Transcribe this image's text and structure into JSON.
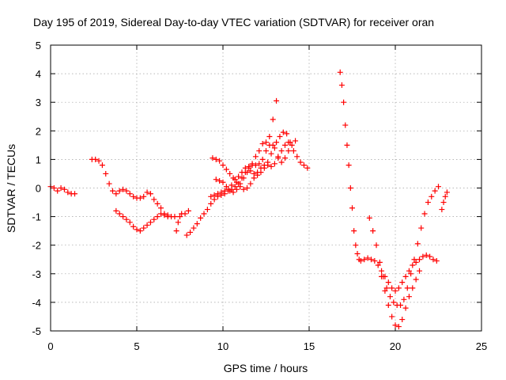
{
  "chart_data": {
    "type": "scatter",
    "title": "Day 195 of 2019, Sidereal Day-to-day VTEC variation (SDTVAR) for receiver oran",
    "xlabel": "GPS time / hours",
    "ylabel": "SDTVAR / TECUs",
    "xlim": [
      0,
      25
    ],
    "ylim": [
      -5,
      5
    ],
    "xticks": [
      "0",
      "5",
      "10",
      "15",
      "20",
      "25"
    ],
    "yticks": [
      "-5",
      "-4",
      "-3",
      "-2",
      "-1",
      "0",
      "1",
      "2",
      "3",
      "4",
      "5"
    ],
    "grid": true,
    "marker": "+",
    "color": "#ff0000",
    "series": [
      {
        "values": [
          [
            0.0,
            0.05
          ],
          [
            0.2,
            0.0
          ],
          [
            0.4,
            -0.1
          ],
          [
            0.6,
            0.0
          ],
          [
            0.8,
            -0.05
          ],
          [
            1.0,
            -0.15
          ],
          [
            1.2,
            -0.2
          ],
          [
            1.4,
            -0.2
          ],
          [
            2.4,
            1.0
          ],
          [
            2.6,
            1.0
          ],
          [
            2.8,
            0.95
          ],
          [
            3.0,
            0.8
          ],
          [
            3.2,
            0.5
          ],
          [
            3.4,
            0.15
          ],
          [
            3.6,
            -0.1
          ],
          [
            3.8,
            -0.2
          ],
          [
            4.0,
            -0.1
          ],
          [
            4.2,
            -0.05
          ],
          [
            4.4,
            -0.1
          ],
          [
            4.6,
            -0.2
          ],
          [
            4.8,
            -0.3
          ],
          [
            5.0,
            -0.35
          ],
          [
            5.2,
            -0.35
          ],
          [
            5.4,
            -0.3
          ],
          [
            5.6,
            -0.15
          ],
          [
            5.8,
            -0.2
          ],
          [
            6.0,
            -0.4
          ],
          [
            6.2,
            -0.55
          ],
          [
            6.4,
            -0.7
          ],
          [
            6.6,
            -0.9
          ],
          [
            6.8,
            -0.95
          ],
          [
            7.0,
            -1.0
          ],
          [
            7.2,
            -1.0
          ],
          [
            7.3,
            -1.5
          ],
          [
            7.4,
            -1.2
          ],
          [
            7.5,
            -1.0
          ],
          [
            7.6,
            -0.9
          ],
          [
            7.8,
            -0.9
          ],
          [
            8.0,
            -0.8
          ],
          [
            3.8,
            -0.8
          ],
          [
            4.0,
            -0.9
          ],
          [
            4.2,
            -1.0
          ],
          [
            4.4,
            -1.1
          ],
          [
            4.6,
            -1.2
          ],
          [
            4.8,
            -1.35
          ],
          [
            5.0,
            -1.45
          ],
          [
            5.2,
            -1.5
          ],
          [
            5.4,
            -1.4
          ],
          [
            5.6,
            -1.3
          ],
          [
            5.8,
            -1.2
          ],
          [
            6.0,
            -1.1
          ],
          [
            6.2,
            -1.0
          ],
          [
            6.4,
            -0.9
          ],
          [
            6.6,
            -0.95
          ],
          [
            6.8,
            -1.0
          ],
          [
            7.9,
            -1.65
          ],
          [
            8.1,
            -1.55
          ],
          [
            8.3,
            -1.4
          ],
          [
            8.5,
            -1.25
          ],
          [
            8.7,
            -1.05
          ],
          [
            8.9,
            -0.9
          ],
          [
            9.1,
            -0.75
          ],
          [
            9.3,
            -0.55
          ],
          [
            9.5,
            -0.4
          ],
          [
            9.7,
            -0.3
          ],
          [
            9.9,
            -0.25
          ],
          [
            10.1,
            -0.2
          ],
          [
            10.3,
            -0.1
          ],
          [
            10.5,
            -0.05
          ],
          [
            10.7,
            0.05
          ],
          [
            10.9,
            0.15
          ],
          [
            11.1,
            0.35
          ],
          [
            11.3,
            0.55
          ],
          [
            11.5,
            0.75
          ],
          [
            11.7,
            0.8
          ],
          [
            11.9,
            0.8
          ],
          [
            12.1,
            0.85
          ],
          [
            12.3,
            1.0
          ],
          [
            12.5,
            1.3
          ],
          [
            12.7,
            1.8
          ],
          [
            12.9,
            2.4
          ],
          [
            13.1,
            3.05
          ],
          [
            9.3,
            -0.3
          ],
          [
            9.5,
            -0.25
          ],
          [
            9.7,
            -0.2
          ],
          [
            9.9,
            -0.15
          ],
          [
            10.1,
            -0.1
          ],
          [
            10.3,
            -0.05
          ],
          [
            10.5,
            0.1
          ],
          [
            10.7,
            0.3
          ],
          [
            10.9,
            0.4
          ],
          [
            11.1,
            0.55
          ],
          [
            11.3,
            0.7
          ],
          [
            11.5,
            0.7
          ],
          [
            11.7,
            0.85
          ],
          [
            11.9,
            1.1
          ],
          [
            12.1,
            1.3
          ],
          [
            12.3,
            1.55
          ],
          [
            12.5,
            1.6
          ],
          [
            12.7,
            1.5
          ],
          [
            12.9,
            1.5
          ],
          [
            13.1,
            1.6
          ],
          [
            13.3,
            1.8
          ],
          [
            13.5,
            1.95
          ],
          [
            13.7,
            1.9
          ],
          [
            13.9,
            1.6
          ],
          [
            14.1,
            1.3
          ],
          [
            14.3,
            1.1
          ],
          [
            14.5,
            0.9
          ],
          [
            14.7,
            0.8
          ],
          [
            14.9,
            0.7
          ],
          [
            9.4,
            1.05
          ],
          [
            9.6,
            1.0
          ],
          [
            9.8,
            0.95
          ],
          [
            10.0,
            0.8
          ],
          [
            10.2,
            0.65
          ],
          [
            10.4,
            0.5
          ],
          [
            10.6,
            0.35
          ],
          [
            10.8,
            0.2
          ],
          [
            11.0,
            0.05
          ],
          [
            11.2,
            -0.05
          ],
          [
            11.4,
            0.0
          ],
          [
            11.6,
            0.15
          ],
          [
            11.8,
            0.35
          ],
          [
            12.0,
            0.55
          ],
          [
            12.2,
            0.7
          ],
          [
            12.4,
            0.8
          ],
          [
            12.6,
            0.9
          ],
          [
            12.8,
            1.2
          ],
          [
            13.0,
            1.4
          ],
          [
            13.2,
            1.1
          ],
          [
            13.4,
            0.9
          ],
          [
            13.6,
            1.05
          ],
          [
            13.8,
            1.3
          ],
          [
            14.0,
            1.5
          ],
          [
            14.2,
            1.65
          ],
          [
            9.6,
            0.3
          ],
          [
            9.8,
            0.25
          ],
          [
            10.0,
            0.2
          ],
          [
            10.2,
            0.05
          ],
          [
            10.4,
            -0.1
          ],
          [
            10.6,
            -0.15
          ],
          [
            10.8,
            -0.05
          ],
          [
            11.0,
            0.15
          ],
          [
            11.2,
            0.35
          ],
          [
            11.4,
            0.55
          ],
          [
            11.6,
            0.6
          ],
          [
            11.8,
            0.5
          ],
          [
            12.0,
            0.45
          ],
          [
            12.2,
            0.55
          ],
          [
            12.4,
            0.7
          ],
          [
            12.6,
            0.8
          ],
          [
            12.8,
            0.75
          ],
          [
            13.0,
            0.85
          ],
          [
            13.2,
            1.05
          ],
          [
            13.4,
            1.3
          ],
          [
            13.6,
            1.5
          ],
          [
            13.8,
            1.6
          ],
          [
            16.8,
            4.05
          ],
          [
            16.9,
            3.6
          ],
          [
            17.0,
            3.0
          ],
          [
            17.1,
            2.2
          ],
          [
            17.2,
            1.5
          ],
          [
            17.3,
            0.8
          ],
          [
            17.4,
            0.0
          ],
          [
            17.5,
            -0.7
          ],
          [
            17.6,
            -1.5
          ],
          [
            17.7,
            -2.0
          ],
          [
            17.8,
            -2.3
          ],
          [
            17.9,
            -2.5
          ],
          [
            18.0,
            -2.55
          ],
          [
            18.2,
            -2.5
          ],
          [
            18.4,
            -2.45
          ],
          [
            18.6,
            -2.5
          ],
          [
            18.8,
            -2.55
          ],
          [
            19.0,
            -2.7
          ],
          [
            19.2,
            -2.9
          ],
          [
            19.4,
            -3.1
          ],
          [
            19.6,
            -3.3
          ],
          [
            19.8,
            -3.5
          ],
          [
            20.0,
            -3.6
          ],
          [
            20.2,
            -3.5
          ],
          [
            20.4,
            -3.3
          ],
          [
            20.6,
            -3.1
          ],
          [
            20.8,
            -2.9
          ],
          [
            21.0,
            -2.7
          ],
          [
            21.2,
            -2.6
          ],
          [
            21.4,
            -2.5
          ],
          [
            21.6,
            -2.4
          ],
          [
            21.8,
            -2.35
          ],
          [
            22.0,
            -2.4
          ],
          [
            22.2,
            -2.5
          ],
          [
            22.4,
            -2.55
          ],
          [
            18.5,
            -1.05
          ],
          [
            18.7,
            -1.5
          ],
          [
            18.9,
            -2.0
          ],
          [
            19.1,
            -2.6
          ],
          [
            19.3,
            -3.1
          ],
          [
            19.5,
            -3.5
          ],
          [
            19.7,
            -3.8
          ],
          [
            19.9,
            -4.0
          ],
          [
            20.1,
            -4.1
          ],
          [
            20.3,
            -4.1
          ],
          [
            20.5,
            -3.9
          ],
          [
            20.7,
            -3.5
          ],
          [
            20.9,
            -3.0
          ],
          [
            21.1,
            -2.5
          ],
          [
            21.3,
            -1.95
          ],
          [
            21.5,
            -1.4
          ],
          [
            21.7,
            -0.9
          ],
          [
            21.9,
            -0.5
          ],
          [
            22.1,
            -0.3
          ],
          [
            22.3,
            -0.1
          ],
          [
            22.5,
            0.05
          ],
          [
            19.2,
            -3.1
          ],
          [
            19.4,
            -3.6
          ],
          [
            19.6,
            -4.1
          ],
          [
            19.8,
            -4.5
          ],
          [
            20.0,
            -4.8
          ],
          [
            20.2,
            -4.85
          ],
          [
            20.4,
            -4.6
          ],
          [
            20.6,
            -4.2
          ],
          [
            20.8,
            -3.8
          ],
          [
            21.0,
            -3.5
          ],
          [
            21.2,
            -3.2
          ],
          [
            21.4,
            -2.9
          ],
          [
            22.7,
            -0.75
          ],
          [
            22.8,
            -0.5
          ],
          [
            22.9,
            -0.3
          ],
          [
            23.0,
            -0.15
          ]
        ]
      }
    ]
  }
}
